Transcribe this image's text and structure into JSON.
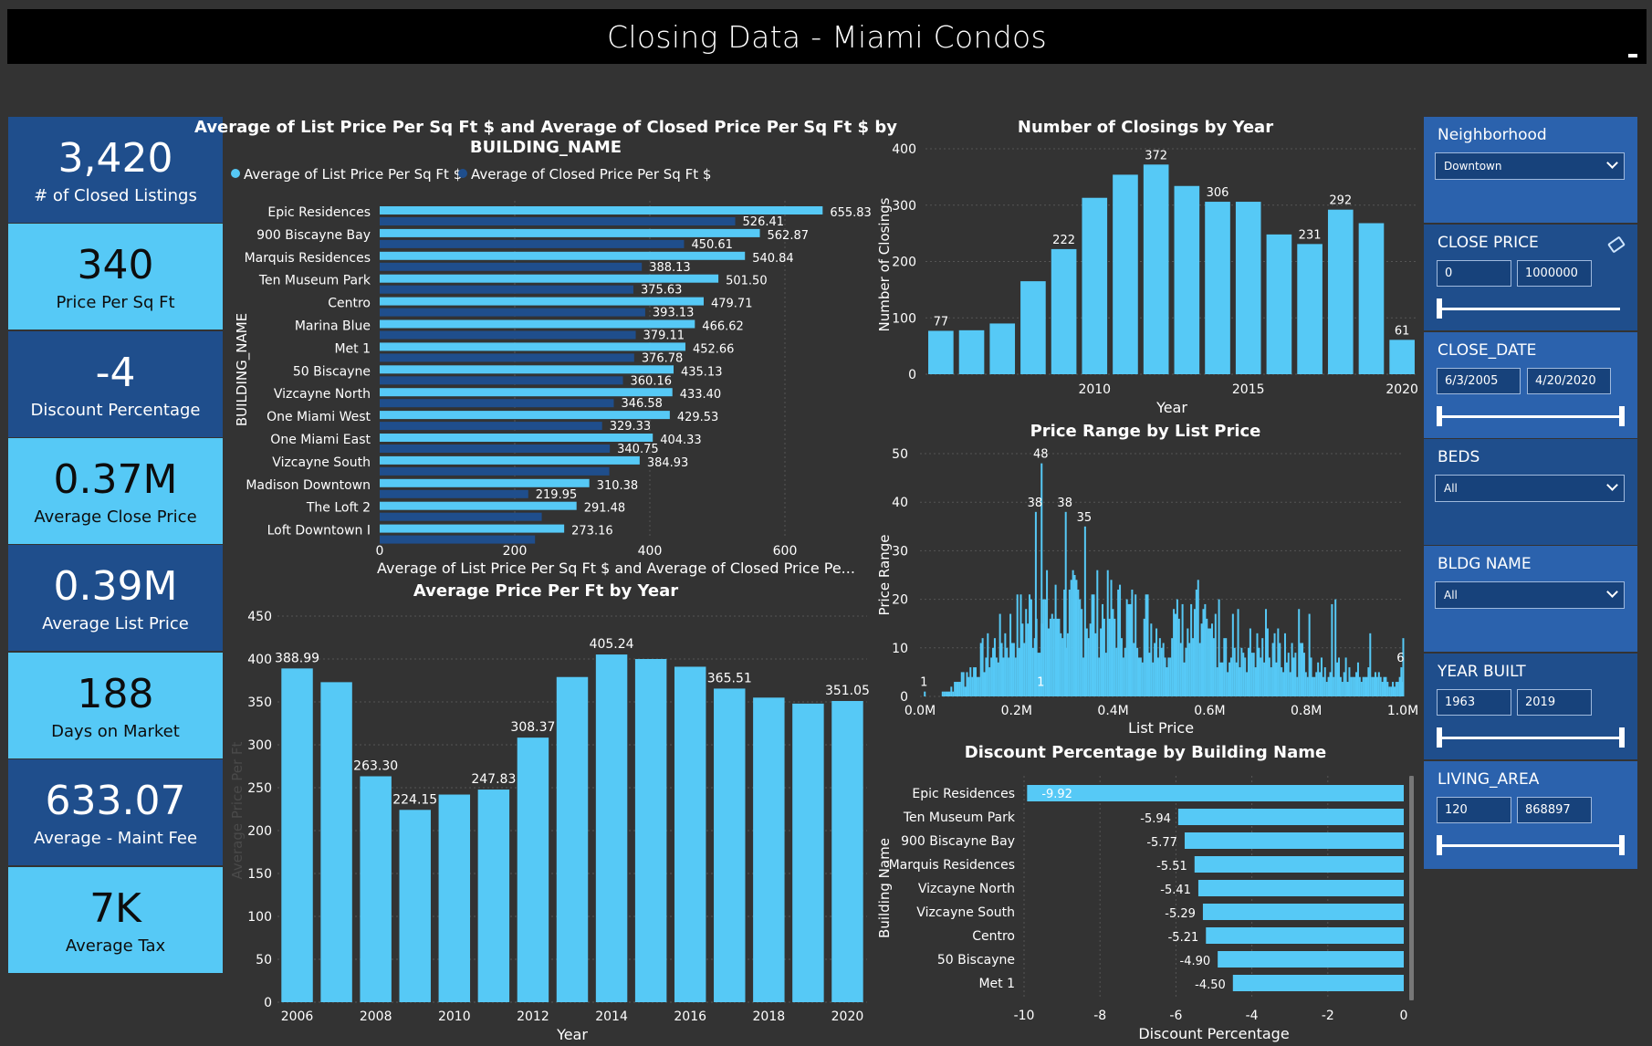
{
  "page": {
    "title": "Closing Data - Miami Condos"
  },
  "kpis": [
    {
      "value": "3,420",
      "label": "# of Closed Listings"
    },
    {
      "value": "340",
      "label": "Price Per Sq Ft"
    },
    {
      "value": "-4",
      "label": "Discount Percentage"
    },
    {
      "value": "0.37M",
      "label": "Average Close Price"
    },
    {
      "value": "0.39M",
      "label": "Average List Price"
    },
    {
      "value": "188",
      "label": "Days on Market"
    },
    {
      "value": "633.07",
      "label": "Average - Maint Fee"
    },
    {
      "value": "7K",
      "label": "Average Tax"
    }
  ],
  "colors": {
    "accent": "#56c9f6",
    "accent_dark": "#1f4e8c",
    "slicer_mid": "#2b62ad",
    "background": "#333333"
  },
  "slicers": {
    "neighborhood": {
      "label": "Neighborhood",
      "value": "Downtown"
    },
    "close_price": {
      "label": "CLOSE PRICE",
      "min": "0",
      "max": "1000000"
    },
    "close_date": {
      "label": "CLOSE_DATE",
      "min": "6/3/2005",
      "max": "4/20/2020"
    },
    "beds": {
      "label": "BEDS",
      "value": "All"
    },
    "bldg_name": {
      "label": "BLDG NAME",
      "value": "All"
    },
    "year_built": {
      "label": "YEAR BUILT",
      "min": "1963",
      "max": "2019"
    },
    "living_area": {
      "label": "LIVING_AREA",
      "min": "120",
      "max": "868897"
    }
  },
  "chart_data": [
    {
      "id": "list_vs_closed",
      "type": "bar",
      "orientation": "horizontal",
      "title": "Average of List Price Per Sq Ft $ and Average of Closed Price Per Sq Ft $ by BUILDING_NAME",
      "xlabel": "Average of List Price Per Sq Ft $ and Average of Closed Price Pe...",
      "ylabel": "BUILDING_NAME",
      "xlim": [
        0,
        660
      ],
      "xticks": [
        "0",
        "200",
        "400",
        "600"
      ],
      "legend_position": "top-left",
      "categories": [
        "Epic Residences",
        "900 Biscayne Bay",
        "Marquis Residences",
        "Ten Museum Park",
        "Centro",
        "Marina Blue",
        "Met 1",
        "50 Biscayne",
        "Vizcayne North",
        "One Miami West",
        "One Miami East",
        "Vizcayne South",
        "Madison Downtown",
        "The Loft 2",
        "Loft Downtown I"
      ],
      "series": [
        {
          "name": "Average of List Price Per Sq Ft $",
          "color": "#56c9f6",
          "values": [
            655.83,
            562.87,
            540.84,
            501.5,
            479.71,
            466.62,
            452.66,
            435.13,
            433.4,
            429.53,
            404.33,
            384.93,
            310.38,
            291.48,
            273.16
          ]
        },
        {
          "name": "Average of Closed Price Per Sq Ft $",
          "color": "#1f4e8c",
          "values": [
            526.41,
            450.61,
            388.13,
            375.63,
            393.13,
            379.11,
            376.78,
            360.16,
            346.58,
            329.33,
            340.75,
            340,
            219.95,
            240,
            230
          ]
        }
      ],
      "labels": {
        "list": [
          "655.83",
          "562.87",
          "540.84",
          "501.50",
          "479.71",
          "466.62",
          "452.66",
          "435.13",
          "433.40",
          "429.53",
          "404.33",
          "384.93",
          "310.38",
          "291.48",
          "273.16"
        ],
        "closed": [
          "526.41",
          "450.61",
          "388.13",
          "375.63",
          "393.13",
          "379.11",
          "376.78",
          "360.16",
          "346.58",
          "329.33",
          "340.75",
          "",
          "219.95",
          "",
          ""
        ]
      }
    },
    {
      "id": "closings_by_year",
      "type": "bar",
      "title": "Number of Closings by Year",
      "xlabel": "Year",
      "ylabel": "Number of Closings",
      "ylim": [
        0,
        400
      ],
      "yticks": [
        "0",
        "100",
        "200",
        "300",
        "400"
      ],
      "xticks": [
        "2010",
        "2015",
        "2020"
      ],
      "categories": [
        "2005",
        "2006",
        "2007",
        "2008",
        "2009",
        "2010",
        "2011",
        "2012",
        "2013",
        "2014",
        "2015",
        "2016",
        "2017",
        "2018",
        "2019",
        "2020"
      ],
      "values": [
        77,
        78,
        90,
        165,
        222,
        313,
        354,
        372,
        334,
        306,
        306,
        248,
        231,
        292,
        268,
        61
      ],
      "labels": [
        "77",
        "",
        "",
        "",
        "222",
        "",
        "",
        "372",
        "",
        "306",
        "",
        "",
        "231",
        "292",
        "",
        "61"
      ]
    },
    {
      "id": "price_range",
      "type": "bar",
      "subtype": "histogram",
      "title": "Price Range by List Price",
      "xlabel": "List Price",
      "ylabel": "Price Range",
      "ylim": [
        0,
        50
      ],
      "yticks": [
        "0",
        "10",
        "20",
        "30",
        "40",
        "50"
      ],
      "xticks": [
        "0.0M",
        "0.2M",
        "0.4M",
        "0.6M",
        "0.8M",
        "1.0M"
      ],
      "annotations": [
        {
          "x": 0.008,
          "y": 1,
          "text": "1"
        },
        {
          "x": 0.25,
          "y": 48,
          "text": "48"
        },
        {
          "x": 0.238,
          "y": 38,
          "text": "38"
        },
        {
          "x": 0.3,
          "y": 38,
          "text": "38"
        },
        {
          "x": 0.34,
          "y": 35,
          "text": "35"
        },
        {
          "x": 0.25,
          "y": 1,
          "text": "1"
        },
        {
          "x": 0.995,
          "y": 6,
          "text": "6"
        }
      ]
    },
    {
      "id": "avg_price_per_ft",
      "type": "bar",
      "title": "Average Price Per Ft by Year",
      "xlabel": "Year",
      "ylabel": "Average Price Per Ft",
      "ylim": [
        0,
        450
      ],
      "yticks": [
        "0",
        "50",
        "100",
        "150",
        "200",
        "250",
        "300",
        "350",
        "400",
        "450"
      ],
      "xticks": [
        "2006",
        "2008",
        "2010",
        "2012",
        "2014",
        "2016",
        "2018",
        "2020"
      ],
      "categories": [
        "2006",
        "2007",
        "2008",
        "2009",
        "2010",
        "2011",
        "2012",
        "2013",
        "2014",
        "2015",
        "2016",
        "2017",
        "2018",
        "2019",
        "2020"
      ],
      "values": [
        388.99,
        373,
        263.3,
        224.15,
        242,
        247.83,
        308.37,
        379,
        405.24,
        400,
        391,
        365.51,
        355,
        348,
        351.05
      ],
      "labels": [
        "388.99",
        "",
        "263.30",
        "224.15",
        "",
        "247.83",
        "308.37",
        "",
        "405.24",
        "",
        "",
        "365.51",
        "",
        "",
        "351.05"
      ]
    },
    {
      "id": "discount_by_building",
      "type": "bar",
      "orientation": "horizontal",
      "title": "Discount Percentage by Building Name",
      "xlabel": "Discount Percentage",
      "ylabel": "Building Name",
      "xlim": [
        -10,
        0
      ],
      "xticks": [
        "-10",
        "-8",
        "-6",
        "-4",
        "-2",
        "0"
      ],
      "categories": [
        "Epic Residences",
        "Ten Museum Park",
        "900 Biscayne Bay",
        "Marquis Residences",
        "Vizcayne North",
        "Vizcayne South",
        "Centro",
        "50 Biscayne",
        "Met 1"
      ],
      "values": [
        -9.92,
        -5.94,
        -5.77,
        -5.51,
        -5.41,
        -5.29,
        -5.21,
        -4.9,
        -4.5
      ],
      "labels": [
        "-9.92",
        "-5.94",
        "-5.77",
        "-5.51",
        "-5.41",
        "-5.29",
        "-5.21",
        "-4.90",
        "-4.50"
      ]
    }
  ]
}
